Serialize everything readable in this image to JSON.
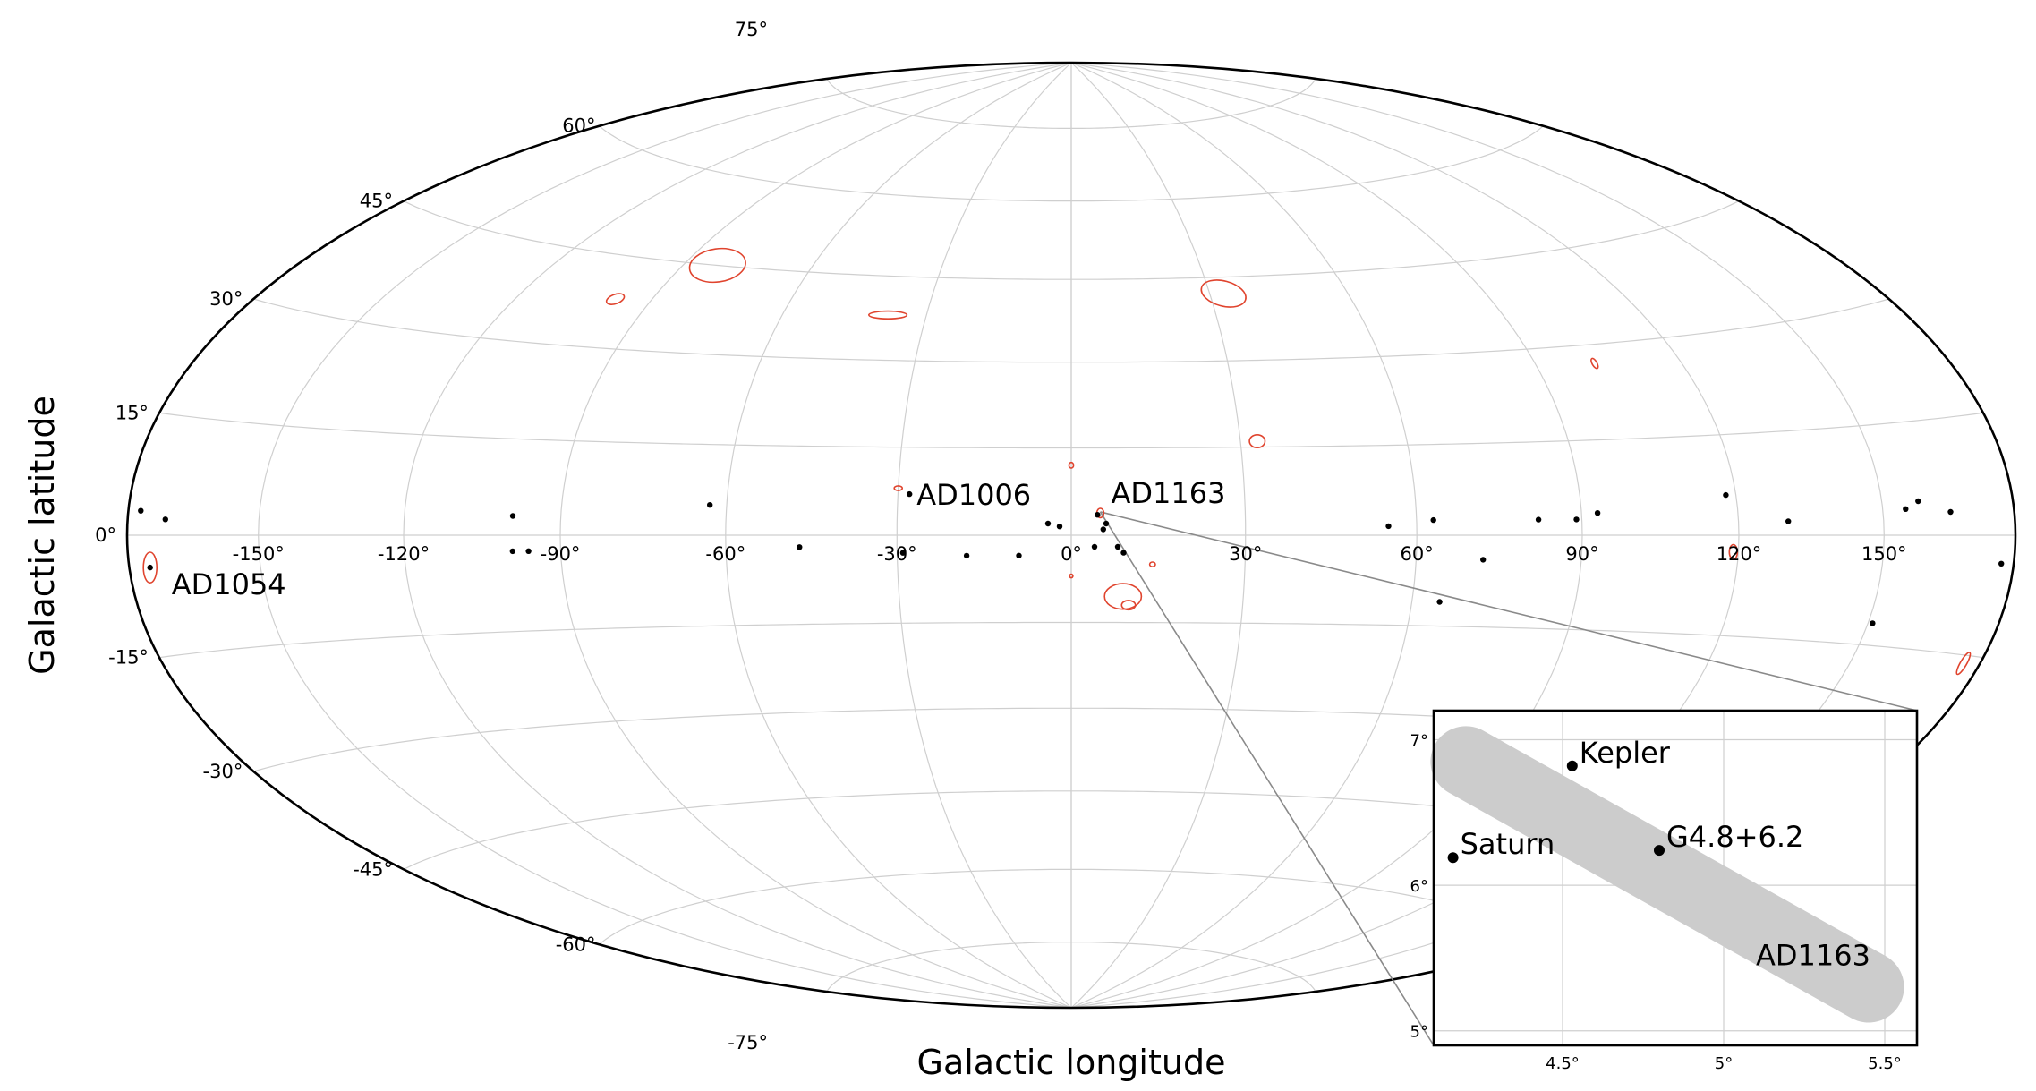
{
  "chart_data": {
    "type": "scatter",
    "projection": "aitoff-hammer (galactic, full sky)",
    "xlabel": "Galactic longitude",
    "ylabel": "Galactic latitude",
    "xlim": [
      -180,
      180
    ],
    "ylim": [
      -90,
      90
    ],
    "grid": true,
    "colors": {
      "sources": "#000000",
      "error_ellipses": "#e0442e",
      "inset_region": "#cccccc",
      "connector": "#8a8a8a"
    },
    "x_ticks": [
      "-150°",
      "-120°",
      "-90°",
      "-60°",
      "-30°",
      "0°",
      "30°",
      "60°",
      "90°",
      "120°",
      "150°"
    ],
    "x_tick_values": [
      -150,
      -120,
      -90,
      -60,
      -30,
      0,
      30,
      60,
      90,
      120,
      150
    ],
    "y_ticks": [
      "75°",
      "60°",
      "45°",
      "30°",
      "15°",
      "0°",
      "-15°",
      "-30°",
      "-45°",
      "-60°",
      "-75°"
    ],
    "y_tick_values": [
      75,
      60,
      45,
      30,
      15,
      0,
      -15,
      -30,
      -45,
      -60,
      -75
    ],
    "sources": [
      {
        "l": -177,
        "b": 3
      },
      {
        "l": -171,
        "b": 2
      },
      {
        "l": -175,
        "b": -4
      },
      {
        "l": -99,
        "b": 3
      },
      {
        "l": -99,
        "b": -2.5
      },
      {
        "l": -96,
        "b": -2.5
      },
      {
        "l": -63,
        "b": 5
      },
      {
        "l": -47,
        "b": -2
      },
      {
        "l": -28,
        "b": 7
      },
      {
        "l": -29,
        "b": -3
      },
      {
        "l": -18,
        "b": -3.5
      },
      {
        "l": -9,
        "b": -3.5
      },
      {
        "l": -4,
        "b": 2
      },
      {
        "l": -2,
        "b": 1.5
      },
      {
        "l": 4,
        "b": -2
      },
      {
        "l": 4.5,
        "b": 3.5
      },
      {
        "l": 5.5,
        "b": 1
      },
      {
        "l": 6,
        "b": 2
      },
      {
        "l": 8,
        "b": -2
      },
      {
        "l": 9,
        "b": -3
      },
      {
        "l": 55,
        "b": 1.5
      },
      {
        "l": 63,
        "b": 2.5
      },
      {
        "l": 65,
        "b": -11
      },
      {
        "l": 72,
        "b": -4
      },
      {
        "l": 82,
        "b": 2.5
      },
      {
        "l": 89,
        "b": 2.5
      },
      {
        "l": 93,
        "b": 3.5
      },
      {
        "l": 118,
        "b": 6
      },
      {
        "l": 130,
        "b": 2
      },
      {
        "l": 151,
        "b": -12
      },
      {
        "l": 155,
        "b": 3.5
      },
      {
        "l": 158,
        "b": 4.5
      },
      {
        "l": 165,
        "b": 3
      },
      {
        "l": 177,
        "b": -3.5
      }
    ],
    "error_ellipses": [
      {
        "l": -82,
        "b": 45,
        "rl": 7,
        "rb": 3,
        "rot": -8
      },
      {
        "l": -98,
        "b": 38,
        "rl": 2.2,
        "rb": 0.8,
        "rot": -20
      },
      {
        "l": -38,
        "b": 38,
        "rl": 4,
        "rb": 0.7,
        "rot": 0
      },
      {
        "l": 33,
        "b": 42,
        "rl": 5,
        "rb": 2.3,
        "rot": 15
      },
      {
        "l": 33,
        "b": 16,
        "rl": 1.4,
        "rb": 1.1,
        "rot": 0
      },
      {
        "l": 102,
        "b": 27,
        "rl": 1.2,
        "rb": 0.4,
        "rot": 60
      },
      {
        "l": 0,
        "b": 12,
        "rl": 0.4,
        "rb": 0.5,
        "rot": 0
      },
      {
        "l": -30,
        "b": 8,
        "rl": 0.7,
        "rb": 0.4,
        "rot": 0
      },
      {
        "l": 9,
        "b": -10.5,
        "rl": 3.2,
        "rb": 2.2,
        "rot": 0
      },
      {
        "l": 10,
        "b": -12,
        "rl": 1.2,
        "rb": 0.8,
        "rot": 0
      },
      {
        "l": 14,
        "b": -5,
        "rl": 0.5,
        "rb": 0.4,
        "rot": 0
      },
      {
        "l": -175,
        "b": -4,
        "rl": 1.6,
        "rb": 1.9,
        "rot": 0
      },
      {
        "l": 119,
        "b": -2.5,
        "rl": 0.8,
        "rb": 1.1,
        "rot": 0
      },
      {
        "l": 176,
        "b": -16,
        "rl": 0.8,
        "rb": 1.6,
        "rot": 30
      },
      {
        "l": 0,
        "b": -7,
        "rl": 0.3,
        "rb": 0.3,
        "rot": 0
      },
      {
        "l": 5,
        "b": 3.8,
        "rl": 0.6,
        "rb": 0.8,
        "rot": 0
      }
    ],
    "annotations": [
      {
        "text": "AD1006",
        "l": -28,
        "b": 7
      },
      {
        "text": "AD1163",
        "l": 5,
        "b": 4
      },
      {
        "text": "AD1054",
        "l": -175,
        "b": -4
      }
    ],
    "inset": {
      "xlim": [
        4.1,
        5.6
      ],
      "ylim": [
        4.9,
        7.2
      ],
      "x_ticks": [
        "4.5°",
        "5°",
        "5.5°"
      ],
      "x_tick_values": [
        4.5,
        5.0,
        5.5
      ],
      "y_ticks": [
        "5°",
        "6°",
        "7°"
      ],
      "y_tick_values": [
        5,
        6,
        7
      ],
      "points": [
        {
          "name": "Kepler",
          "l": 4.53,
          "b": 6.82
        },
        {
          "name": "Saturn",
          "l": 4.16,
          "b": 6.19
        },
        {
          "name": "G4.8+6.2",
          "l": 4.8,
          "b": 6.24
        }
      ],
      "region_label": "AD1163",
      "region": {
        "start": [
          4.2,
          6.85
        ],
        "end": [
          5.45,
          5.3
        ],
        "halfwidth": 0.11
      }
    }
  }
}
